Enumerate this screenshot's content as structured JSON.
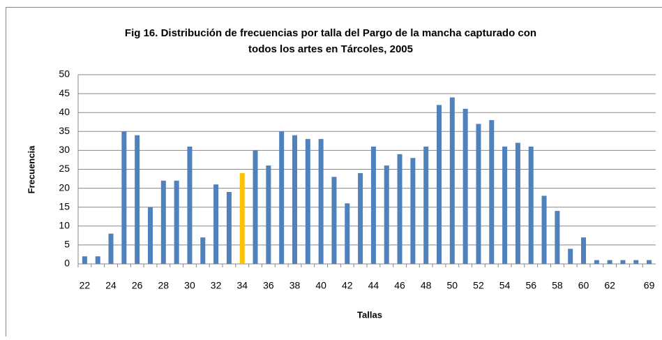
{
  "chart_data": {
    "type": "bar",
    "title": [
      "Fig 16. Distribución de frecuencias por talla del Pargo de la mancha capturado con",
      "todos los artes en Tárcoles, 2005"
    ],
    "x_label": "Tallas",
    "y_label": "Frecuencia",
    "categories": [
      "22",
      null,
      "24",
      null,
      "26",
      null,
      "28",
      null,
      "30",
      null,
      "32",
      null,
      "34",
      null,
      "36",
      null,
      "38",
      null,
      "40",
      null,
      "42",
      null,
      "44",
      null,
      "46",
      null,
      "48",
      null,
      "50",
      null,
      "52",
      null,
      "54",
      null,
      "56",
      null,
      "58",
      null,
      "60",
      null,
      "62",
      null,
      null,
      "69"
    ],
    "values": [
      2,
      2,
      8,
      35,
      34,
      15,
      22,
      22,
      31,
      7,
      21,
      19,
      24,
      30,
      26,
      35,
      34,
      33,
      33,
      23,
      16,
      24,
      31,
      26,
      29,
      28,
      31,
      42,
      44,
      41,
      37,
      38,
      31,
      32,
      31,
      18,
      14,
      4,
      7,
      1,
      1,
      1,
      1,
      1
    ],
    "colors": [
      "#4f81bd",
      "#4f81bd",
      "#4f81bd",
      "#4f81bd",
      "#4f81bd",
      "#4f81bd",
      "#4f81bd",
      "#4f81bd",
      "#4f81bd",
      "#4f81bd",
      "#4f81bd",
      "#4f81bd",
      "#ffc000",
      "#4f81bd",
      "#4f81bd",
      "#4f81bd",
      "#4f81bd",
      "#4f81bd",
      "#4f81bd",
      "#4f81bd",
      "#4f81bd",
      "#4f81bd",
      "#4f81bd",
      "#4f81bd",
      "#4f81bd",
      "#4f81bd",
      "#4f81bd",
      "#4f81bd",
      "#4f81bd",
      "#4f81bd",
      "#4f81bd",
      "#4f81bd",
      "#4f81bd",
      "#4f81bd",
      "#4f81bd",
      "#4f81bd",
      "#4f81bd",
      "#4f81bd",
      "#4f81bd",
      "#4f81bd",
      "#4f81bd",
      "#4f81bd",
      "#4f81bd",
      "#4f81bd"
    ],
    "ylim": [
      0,
      50
    ],
    "yticks": [
      0,
      5,
      10,
      15,
      20,
      25,
      30,
      35,
      40,
      45,
      50
    ],
    "grid": true
  }
}
